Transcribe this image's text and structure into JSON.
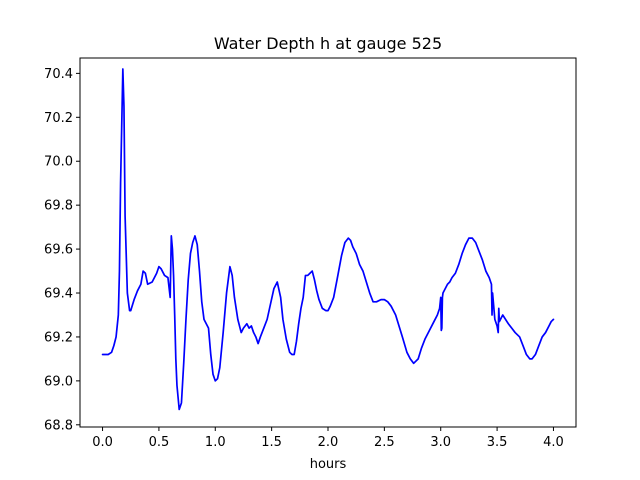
{
  "chart_data": {
    "type": "line",
    "title": "Water Depth h at gauge 525",
    "xlabel": "hours",
    "ylabel": "",
    "xlim": [
      -0.2,
      4.2
    ],
    "ylim": [
      68.79,
      70.47
    ],
    "xticks": [
      0.0,
      0.5,
      1.0,
      1.5,
      2.0,
      2.5,
      3.0,
      3.5,
      4.0
    ],
    "xtick_labels": [
      "0.0",
      "0.5",
      "1.0",
      "1.5",
      "2.0",
      "2.5",
      "3.0",
      "3.5",
      "4.0"
    ],
    "yticks": [
      68.8,
      69.0,
      69.2,
      69.4,
      69.6,
      69.8,
      70.0,
      70.2,
      70.4
    ],
    "ytick_labels": [
      "68.8",
      "69.0",
      "69.2",
      "69.4",
      "69.6",
      "69.8",
      "70.0",
      "70.2",
      "70.4"
    ],
    "grid": false,
    "series": [
      {
        "color": "#0000ff",
        "x": [
          0.0,
          0.05,
          0.08,
          0.1,
          0.12,
          0.14,
          0.15,
          0.16,
          0.18,
          0.19,
          0.2,
          0.22,
          0.24,
          0.25,
          0.28,
          0.31,
          0.34,
          0.36,
          0.38,
          0.4,
          0.44,
          0.46,
          0.48,
          0.5,
          0.52,
          0.55,
          0.58,
          0.6,
          0.61,
          0.62,
          0.63,
          0.64,
          0.65,
          0.66,
          0.68,
          0.7,
          0.72,
          0.74,
          0.76,
          0.78,
          0.8,
          0.82,
          0.84,
          0.86,
          0.88,
          0.9,
          0.92,
          0.94,
          0.96,
          0.98,
          1.0,
          1.02,
          1.04,
          1.07,
          1.1,
          1.13,
          1.15,
          1.17,
          1.2,
          1.23,
          1.25,
          1.28,
          1.3,
          1.32,
          1.34,
          1.36,
          1.38,
          1.4,
          1.43,
          1.46,
          1.49,
          1.52,
          1.55,
          1.58,
          1.6,
          1.63,
          1.66,
          1.68,
          1.7,
          1.72,
          1.74,
          1.76,
          1.78,
          1.8,
          1.82,
          1.84,
          1.86,
          1.88,
          1.9,
          1.92,
          1.95,
          1.98,
          2.0,
          2.02,
          2.05,
          2.08,
          2.12,
          2.15,
          2.18,
          2.2,
          2.22,
          2.25,
          2.28,
          2.31,
          2.34,
          2.37,
          2.4,
          2.43,
          2.47,
          2.5,
          2.53,
          2.56,
          2.6,
          2.63,
          2.66,
          2.7,
          2.73,
          2.76,
          2.8,
          2.83,
          2.86,
          2.9,
          2.94,
          2.97,
          2.99,
          3.0,
          3.005,
          3.01,
          3.015,
          3.02,
          3.04,
          3.06,
          3.08,
          3.1,
          3.13,
          3.16,
          3.19,
          3.22,
          3.25,
          3.28,
          3.31,
          3.34,
          3.37,
          3.4,
          3.43,
          3.45,
          3.455,
          3.46,
          3.48,
          3.5,
          3.51,
          3.515,
          3.52,
          3.55,
          3.6,
          3.63,
          3.66,
          3.7,
          3.73,
          3.76,
          3.79,
          3.81,
          3.84,
          3.87,
          3.9,
          3.93,
          3.96,
          3.98,
          4.0
        ],
        "y": [
          69.12,
          69.12,
          69.13,
          69.16,
          69.2,
          69.3,
          69.5,
          69.9,
          70.42,
          70.25,
          69.75,
          69.4,
          69.32,
          69.32,
          69.37,
          69.41,
          69.44,
          69.5,
          69.49,
          69.44,
          69.45,
          69.47,
          69.49,
          69.52,
          69.51,
          69.48,
          69.47,
          69.38,
          69.66,
          69.6,
          69.48,
          69.3,
          69.1,
          68.98,
          68.87,
          68.9,
          69.08,
          69.28,
          69.46,
          69.58,
          69.63,
          69.66,
          69.62,
          69.5,
          69.36,
          69.28,
          69.26,
          69.24,
          69.12,
          69.03,
          69.0,
          69.01,
          69.06,
          69.22,
          69.4,
          69.52,
          69.48,
          69.38,
          69.28,
          69.22,
          69.24,
          69.26,
          69.24,
          69.25,
          69.22,
          69.2,
          69.17,
          69.2,
          69.24,
          69.28,
          69.35,
          69.42,
          69.45,
          69.38,
          69.28,
          69.19,
          69.13,
          69.12,
          69.12,
          69.18,
          69.26,
          69.33,
          69.38,
          69.48,
          69.48,
          69.49,
          69.5,
          69.46,
          69.41,
          69.37,
          69.33,
          69.32,
          69.32,
          69.34,
          69.38,
          69.46,
          69.57,
          69.63,
          69.65,
          69.64,
          69.61,
          69.58,
          69.53,
          69.5,
          69.45,
          69.4,
          69.36,
          69.36,
          69.37,
          69.37,
          69.36,
          69.34,
          69.3,
          69.25,
          69.2,
          69.13,
          69.1,
          69.08,
          69.1,
          69.15,
          69.19,
          69.23,
          69.27,
          69.3,
          69.33,
          69.38,
          69.23,
          69.24,
          69.38,
          69.4,
          69.42,
          69.44,
          69.45,
          69.47,
          69.49,
          69.53,
          69.58,
          69.62,
          69.65,
          69.65,
          69.63,
          69.59,
          69.55,
          69.5,
          69.47,
          69.44,
          69.3,
          69.4,
          69.28,
          69.25,
          69.22,
          69.33,
          69.27,
          69.3,
          69.26,
          69.24,
          69.22,
          69.2,
          69.16,
          69.12,
          69.1,
          69.1,
          69.12,
          69.16,
          69.2,
          69.22,
          69.25,
          69.27,
          69.28
        ]
      }
    ]
  }
}
